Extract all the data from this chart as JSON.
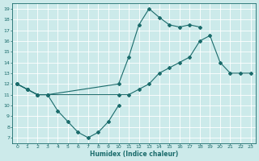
{
  "xlabel": "Humidex (Indice chaleur)",
  "bg_color": "#cceaea",
  "line_color": "#1a6b6b",
  "grid_color": "#ffffff",
  "xlim": [
    -0.5,
    23.5
  ],
  "ylim": [
    6.5,
    19.5
  ],
  "xticks": [
    0,
    1,
    2,
    3,
    4,
    5,
    6,
    7,
    8,
    9,
    10,
    11,
    12,
    13,
    14,
    15,
    16,
    17,
    18,
    19,
    20,
    21,
    22,
    23
  ],
  "yticks": [
    7,
    8,
    9,
    10,
    11,
    12,
    13,
    14,
    15,
    16,
    17,
    18,
    19
  ],
  "series1_x": [
    0,
    1,
    2,
    3,
    4,
    5,
    6,
    7,
    8,
    9,
    10
  ],
  "series1_y": [
    12,
    11.5,
    11,
    11,
    9.5,
    8.5,
    7.5,
    7,
    7.5,
    8.5,
    10
  ],
  "series2_x": [
    0,
    1,
    2,
    3,
    10,
    11,
    12,
    13,
    14,
    15,
    16,
    17,
    18
  ],
  "series2_y": [
    12,
    11.5,
    11,
    11,
    12,
    14.5,
    17.5,
    19,
    18.2,
    17.5,
    17.3,
    17.5,
    17.3
  ],
  "series3_x": [
    0,
    1,
    2,
    3,
    10,
    11,
    12,
    13,
    14,
    15,
    16,
    17,
    18,
    19,
    20,
    21,
    22,
    23
  ],
  "series3_y": [
    12,
    11.5,
    11,
    11,
    11,
    11,
    11.5,
    12,
    13,
    13.5,
    14,
    14.5,
    16,
    16.5,
    14,
    13,
    13,
    13
  ]
}
